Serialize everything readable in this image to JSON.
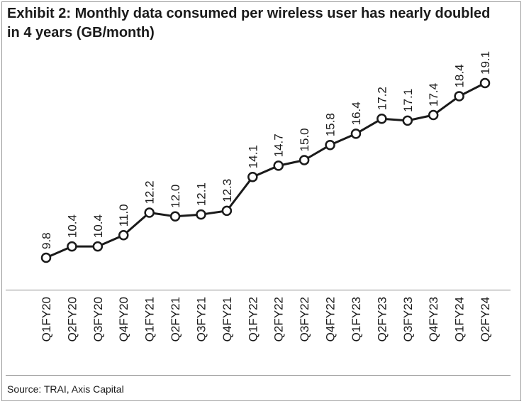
{
  "title": "Exhibit 2: Monthly data consumed per wireless user has nearly doubled in 4 years (GB/month)",
  "source": "Source: TRAI, Axis Capital",
  "colors": {
    "line": "#1a1a1a",
    "marker_fill": "#ffffff",
    "text": "#1a1a1a",
    "rule": "#8c8c8c"
  },
  "chart_data": {
    "type": "line",
    "categories": [
      "Q1FY20",
      "Q2FY20",
      "Q3FY20",
      "Q4FY20",
      "Q1FY21",
      "Q2FY21",
      "Q3FY21",
      "Q4FY21",
      "Q1FY22",
      "Q2FY22",
      "Q3FY22",
      "Q4FY22",
      "Q1FY23",
      "Q2FY23",
      "Q3FY23",
      "Q4FY23",
      "Q1FY24",
      "Q2FY24"
    ],
    "series": [
      {
        "values": [
          9.8,
          10.4,
          10.4,
          11.0,
          12.2,
          12.0,
          12.1,
          12.3,
          14.1,
          14.7,
          15.0,
          15.8,
          16.4,
          17.2,
          17.1,
          17.4,
          18.4,
          19.1
        ]
      }
    ],
    "data_labels": [
      "9.8",
      "10.4",
      "10.4",
      "11.0",
      "12.2",
      "12.0",
      "12.1",
      "12.3",
      "14.1",
      "14.7",
      "15.0",
      "15.8",
      "16.4",
      "17.2",
      "17.1",
      "17.4",
      "18.4",
      "19.1"
    ],
    "xlabel": "",
    "ylabel": "",
    "ylim": [
      9.8,
      19.1
    ],
    "grid": false,
    "legend": "none",
    "markers": "hollow-circle"
  }
}
